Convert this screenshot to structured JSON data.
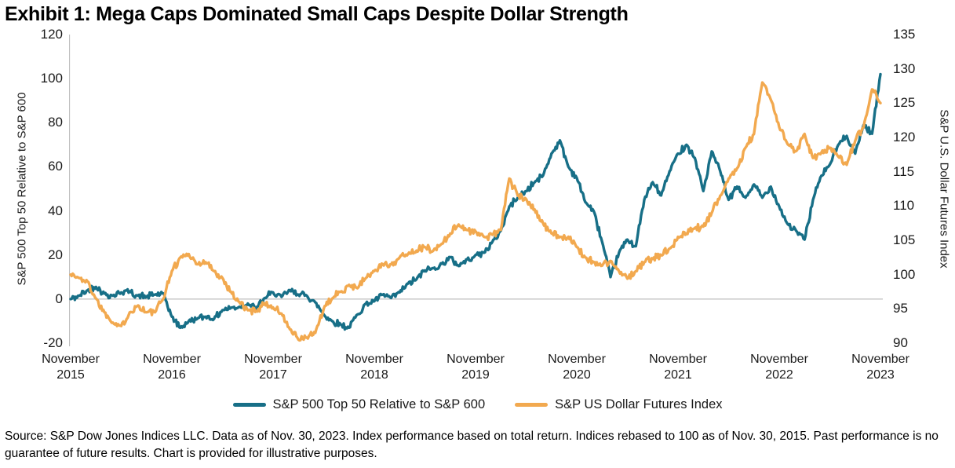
{
  "title": "Exhibit 1: Mega Caps Dominated Small Caps Despite Dollar Strength",
  "source_note": "Source: S&P Dow Jones Indices LLC. Data as of Nov. 30, 2023. Index performance based on total return. Indices rebased to 100 as of Nov. 30, 2015. Past performance is no guarantee of future results. Chart is provided for illustrative purposes.",
  "colors": {
    "top50_line": "#176F87",
    "dollar_line": "#F2A94F",
    "gridline": "#BFBFBF",
    "text": "#1a1a1a"
  },
  "legend": {
    "items": [
      {
        "label": "S&P 500 Top 50 Relative to S&P 600",
        "color": "#176F87"
      },
      {
        "label": "S&P US Dollar Futures Index",
        "color": "#F2A94F"
      }
    ]
  },
  "chart_data": {
    "type": "line",
    "title": "Exhibit 1: Mega Caps Dominated Small Caps Despite Dollar Strength",
    "x_unit": "month",
    "x_start": "2015-11",
    "x_end": "2023-11",
    "n_points": 97,
    "grid": "zero-line-only",
    "x_tick_labels": [
      {
        "line1": "November",
        "line2": "2015"
      },
      {
        "line1": "November",
        "line2": "2016"
      },
      {
        "line1": "November",
        "line2": "2017"
      },
      {
        "line1": "November",
        "line2": "2018"
      },
      {
        "line1": "November",
        "line2": "2019"
      },
      {
        "line1": "November",
        "line2": "2020"
      },
      {
        "line1": "November",
        "line2": "2021"
      },
      {
        "line1": "November",
        "line2": "2022"
      },
      {
        "line1": "November",
        "line2": "2023"
      }
    ],
    "left_axis": {
      "label": "S&P 500 Top 50 Relative to S&P 600",
      "ticks": [
        120,
        100,
        80,
        60,
        40,
        20,
        0,
        -20
      ],
      "range": [
        -20,
        120
      ]
    },
    "right_axis": {
      "label": "S&P U.S. Dollar Futures Index",
      "ticks": [
        135,
        130,
        125,
        120,
        115,
        110,
        105,
        100,
        95,
        90
      ],
      "range": [
        90,
        135
      ]
    },
    "zero_line_left_value": 0,
    "series": [
      {
        "name": "S&P 500 Top 50 Relative to S&P 600",
        "axis": "left",
        "color": "#176F87",
        "values": [
          0,
          1.5,
          4,
          5.5,
          2.5,
          1.5,
          3,
          3.5,
          1.5,
          1,
          2,
          2.5,
          -8,
          -13,
          -10,
          -9,
          -8,
          -9,
          -5,
          -4,
          -3.5,
          -2,
          -4.5,
          0.5,
          3,
          1,
          4,
          2,
          1.5,
          -1.5,
          -7,
          -10,
          -11.5,
          -13,
          -7,
          -2,
          -1,
          2,
          0.5,
          3,
          7,
          9,
          13,
          14,
          16,
          19,
          15,
          18,
          20,
          21,
          26,
          31,
          42,
          46,
          49,
          53,
          56,
          66,
          72,
          60,
          55,
          44,
          40,
          26,
          10,
          21,
          27,
          24,
          45,
          53,
          47,
          58,
          66,
          70,
          64,
          49,
          67,
          58,
          45,
          51,
          46,
          52,
          46,
          51,
          42,
          34,
          31,
          27,
          45,
          56,
          61,
          70,
          74,
          66,
          79,
          75,
          102
        ]
      },
      {
        "name": "S&P US Dollar Futures Index",
        "axis": "right",
        "color": "#F2A94F",
        "values": [
          100,
          99.5,
          99,
          96.5,
          94.5,
          93,
          92.5,
          94.5,
          95.5,
          94.5,
          94.5,
          96.5,
          100.5,
          102.5,
          103,
          101.5,
          101.8,
          100.5,
          99.5,
          97.5,
          96,
          94.8,
          94.7,
          95.8,
          95.2,
          94.3,
          92,
          90.5,
          90.8,
          91.5,
          95,
          96.5,
          97.5,
          98.5,
          98,
          99.5,
          100.5,
          101.5,
          101.5,
          102.5,
          103,
          103.5,
          104,
          103.5,
          104.5,
          106,
          107.3,
          106.5,
          106.3,
          105.5,
          105.8,
          106.5,
          114,
          111.5,
          111,
          109.5,
          107.5,
          106,
          105.5,
          105.5,
          104,
          102.5,
          101.8,
          101.3,
          102,
          100.5,
          99.4,
          100.5,
          101.8,
          102.3,
          102.8,
          103.8,
          105.5,
          106,
          106.8,
          107,
          109,
          111.5,
          114,
          115.5,
          118.5,
          120.5,
          128,
          125.5,
          121.5,
          119,
          118,
          120.5,
          117,
          117.8,
          118.5,
          117.2,
          116,
          119.5,
          121.5,
          127,
          125
        ]
      }
    ]
  }
}
